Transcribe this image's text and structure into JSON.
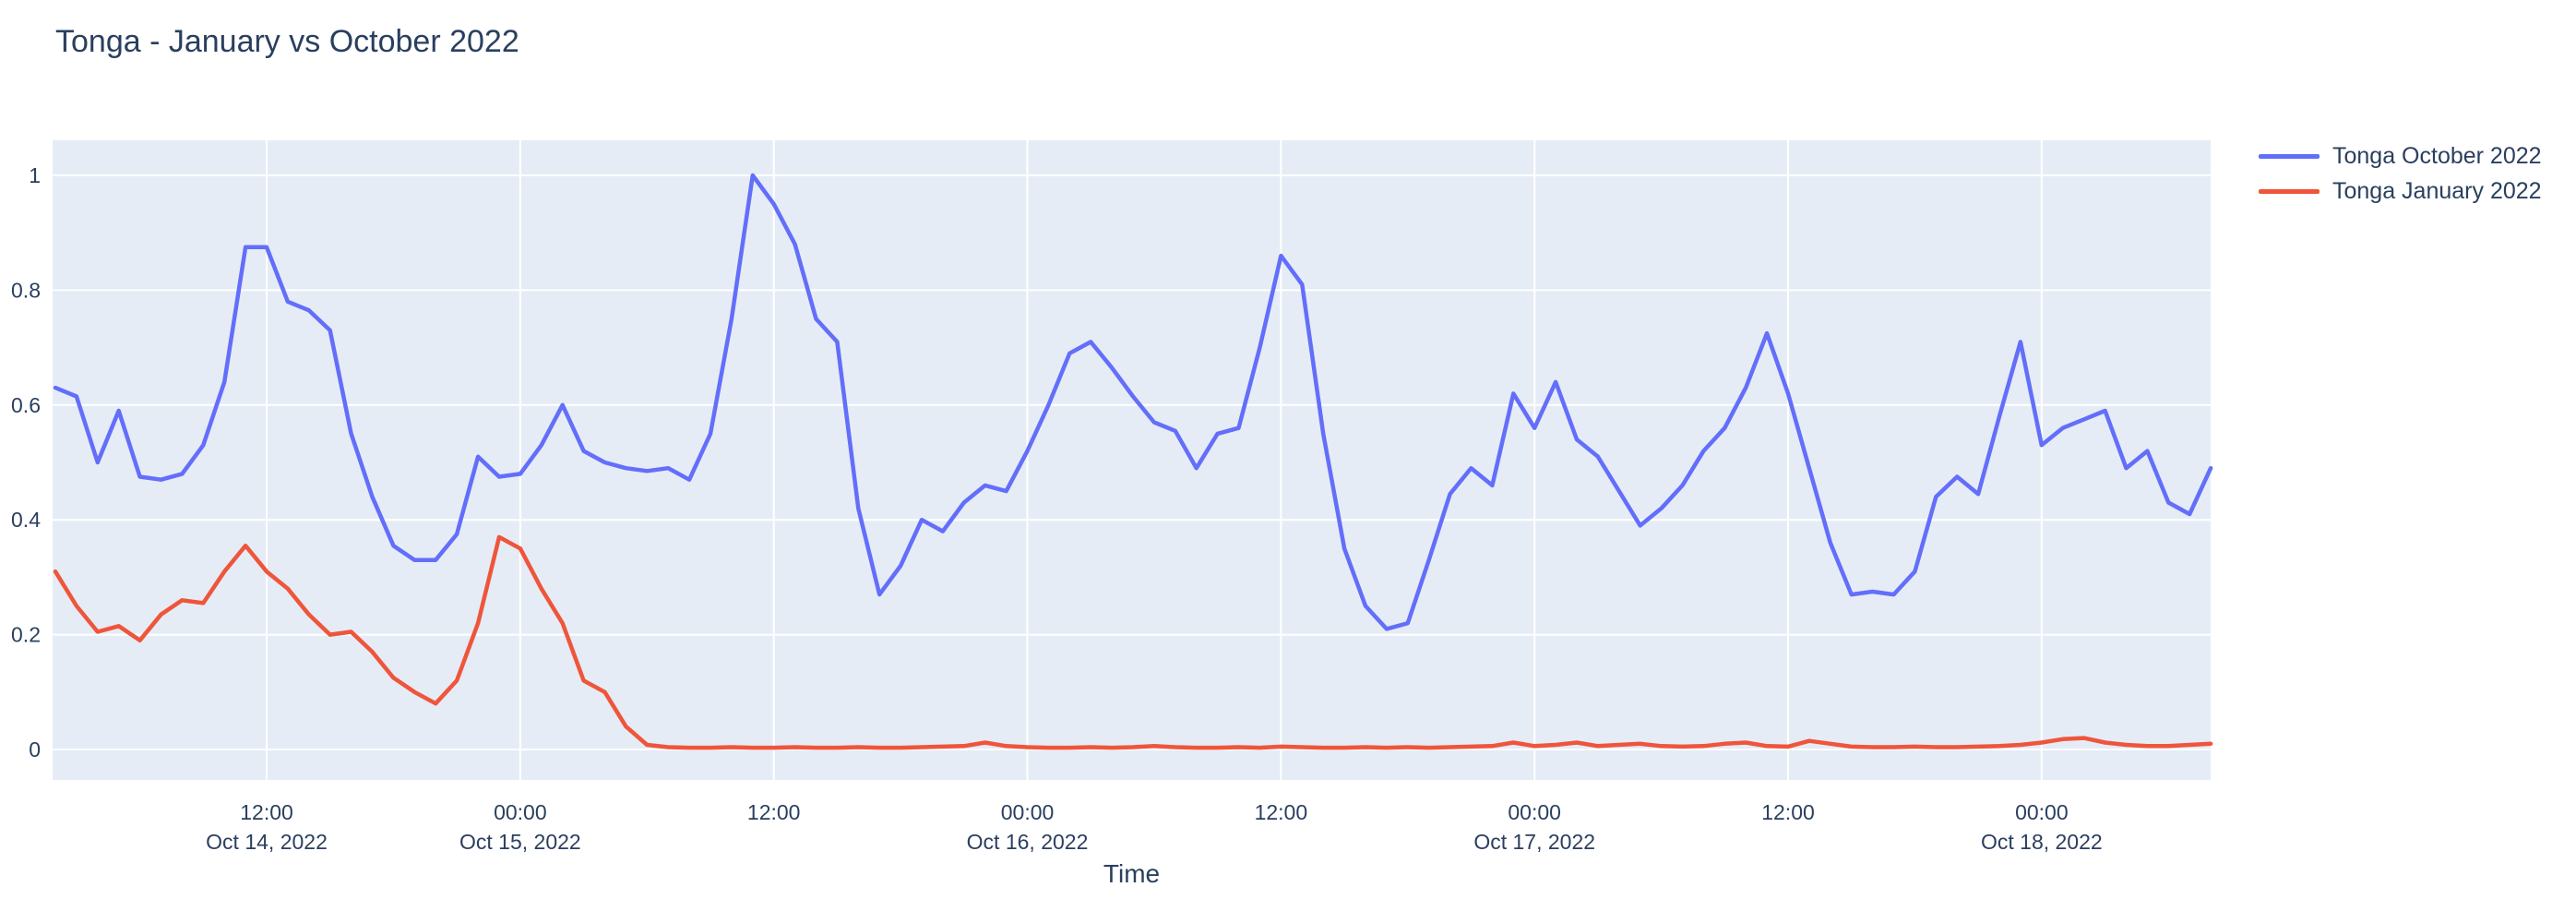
{
  "title": "Tonga - January vs October 2022",
  "colors": {
    "paper_bg": "#FFFFFF",
    "plot_bg": "#E5ECF6",
    "grid": "#FFFFFF",
    "text": "#2A3F5F",
    "series_october": "#636EFA",
    "series_january": "#EF553B"
  },
  "legend": {
    "items": [
      {
        "id": "october",
        "label": "Tonga October 2022",
        "color": "#636EFA"
      },
      {
        "id": "january",
        "label": "Tonga January 2022",
        "color": "#EF553B"
      }
    ]
  },
  "chart_data": {
    "type": "line",
    "title": "Tonga - January vs October 2022",
    "xlabel": "Time",
    "ylabel": "",
    "ylim": [
      -0.053,
      1.06
    ],
    "y_ticks": [
      0,
      0.2,
      0.4,
      0.6,
      0.8,
      1
    ],
    "y_tick_labels": [
      "0",
      "0.2",
      "0.4",
      "0.6",
      "0.8",
      "1"
    ],
    "x_start": "2022-10-14 02:00",
    "x_step_hours": 1,
    "n_points": 103,
    "x_ticks": [
      {
        "time": "12:00",
        "date": "Oct 14, 2022",
        "hour_index": 10
      },
      {
        "time": "00:00",
        "date": "Oct 15, 2022",
        "hour_index": 22
      },
      {
        "time": "12:00",
        "date": "",
        "hour_index": 34
      },
      {
        "time": "00:00",
        "date": "Oct 16, 2022",
        "hour_index": 46
      },
      {
        "time": "12:00",
        "date": "",
        "hour_index": 58
      },
      {
        "time": "00:00",
        "date": "Oct 17, 2022",
        "hour_index": 70
      },
      {
        "time": "12:00",
        "date": "",
        "hour_index": 82
      },
      {
        "time": "00:00",
        "date": "Oct 18, 2022",
        "hour_index": 94
      }
    ],
    "legend_position": "top-right-outside",
    "grid": true,
    "series": [
      {
        "name": "Tonga October 2022",
        "id": "october",
        "color": "#636EFA",
        "values": [
          0.63,
          0.615,
          0.5,
          0.59,
          0.475,
          0.47,
          0.48,
          0.53,
          0.64,
          0.875,
          0.875,
          0.78,
          0.765,
          0.73,
          0.55,
          0.44,
          0.355,
          0.33,
          0.33,
          0.375,
          0.51,
          0.475,
          0.48,
          0.53,
          0.6,
          0.52,
          0.5,
          0.49,
          0.485,
          0.49,
          0.47,
          0.55,
          0.75,
          1.0,
          0.95,
          0.88,
          0.75,
          0.71,
          0.42,
          0.27,
          0.32,
          0.4,
          0.38,
          0.43,
          0.46,
          0.45,
          0.52,
          0.6,
          0.69,
          0.71,
          0.665,
          0.615,
          0.57,
          0.555,
          0.49,
          0.55,
          0.56,
          0.7,
          0.86,
          0.81,
          0.55,
          0.35,
          0.25,
          0.21,
          0.22,
          0.33,
          0.445,
          0.49,
          0.46,
          0.62,
          0.56,
          0.64,
          0.54,
          0.51,
          0.45,
          0.39,
          0.42,
          0.46,
          0.52,
          0.56,
          0.63,
          0.725,
          0.62,
          0.49,
          0.36,
          0.27,
          0.275,
          0.27,
          0.31,
          0.44,
          0.475,
          0.445,
          0.58,
          0.71,
          0.53,
          0.56,
          0.575,
          0.59,
          0.49,
          0.52,
          0.43,
          0.41,
          0.49
        ]
      },
      {
        "name": "Tonga January 2022",
        "id": "january",
        "color": "#EF553B",
        "values": [
          0.31,
          0.25,
          0.205,
          0.215,
          0.19,
          0.235,
          0.26,
          0.255,
          0.31,
          0.355,
          0.31,
          0.28,
          0.235,
          0.2,
          0.205,
          0.17,
          0.125,
          0.1,
          0.08,
          0.12,
          0.22,
          0.37,
          0.35,
          0.28,
          0.22,
          0.12,
          0.1,
          0.04,
          0.008,
          0.004,
          0.003,
          0.003,
          0.004,
          0.003,
          0.003,
          0.004,
          0.003,
          0.003,
          0.004,
          0.003,
          0.003,
          0.004,
          0.005,
          0.006,
          0.012,
          0.006,
          0.004,
          0.003,
          0.003,
          0.004,
          0.003,
          0.004,
          0.006,
          0.004,
          0.003,
          0.003,
          0.004,
          0.003,
          0.005,
          0.004,
          0.003,
          0.003,
          0.004,
          0.003,
          0.004,
          0.003,
          0.004,
          0.005,
          0.006,
          0.012,
          0.006,
          0.008,
          0.012,
          0.006,
          0.008,
          0.01,
          0.006,
          0.005,
          0.006,
          0.01,
          0.012,
          0.006,
          0.005,
          0.015,
          0.01,
          0.005,
          0.004,
          0.004,
          0.005,
          0.004,
          0.004,
          0.005,
          0.006,
          0.008,
          0.012,
          0.018,
          0.02,
          0.012,
          0.008,
          0.006,
          0.006,
          0.008,
          0.01
        ]
      }
    ]
  }
}
